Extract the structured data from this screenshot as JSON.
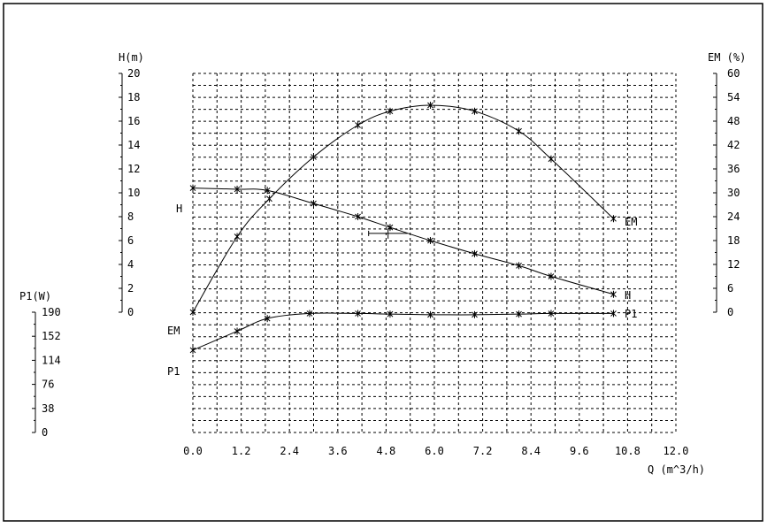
{
  "chart_data": {
    "type": "line",
    "xlabel": "Q (m^3/h)",
    "xlim": [
      0,
      12
    ],
    "xticks": [
      "0.0",
      "1.2",
      "2.4",
      "3.6",
      "4.8",
      "6.0",
      "7.2",
      "8.4",
      "9.6",
      "10.8",
      "12.0"
    ],
    "axes": {
      "H": {
        "label": "H(m)",
        "lim": [
          0,
          20
        ],
        "ticks": [
          "0",
          "2",
          "4",
          "6",
          "8",
          "10",
          "12",
          "14",
          "16",
          "18",
          "20"
        ]
      },
      "EM": {
        "label": "EM (%)",
        "lim": [
          0,
          60
        ],
        "ticks": [
          "0",
          "6",
          "12",
          "18",
          "24",
          "30",
          "36",
          "42",
          "48",
          "54",
          "60"
        ]
      },
      "P1": {
        "label": "P1(W)",
        "lim": [
          0,
          190
        ],
        "ticks": [
          "0",
          "38",
          "76",
          "114",
          "152",
          "190"
        ]
      }
    },
    "series": [
      {
        "name": "H",
        "axis": "H",
        "x": [
          0.0,
          1.1,
          1.85,
          3.0,
          4.1,
          4.9,
          5.9,
          7.0,
          8.1,
          8.9,
          10.45
        ],
        "y": [
          10.4,
          10.3,
          10.2,
          9.1,
          8.0,
          7.1,
          6.0,
          4.9,
          3.9,
          3.0,
          1.5
        ]
      },
      {
        "name": "EM",
        "axis": "EM",
        "x": [
          0.0,
          1.1,
          1.9,
          3.0,
          4.1,
          4.9,
          5.9,
          7.0,
          8.1,
          8.9,
          10.45
        ],
        "y": [
          0.0,
          19.0,
          28.5,
          39.0,
          47.0,
          50.5,
          52.0,
          50.5,
          45.5,
          38.5,
          23.5
        ]
      },
      {
        "name": "P1",
        "axis": "P1",
        "x": [
          0.0,
          1.1,
          1.85,
          2.9,
          4.1,
          4.9,
          5.9,
          7.0,
          8.1,
          8.9,
          10.45
        ],
        "y": [
          130,
          160,
          180,
          188,
          188,
          187,
          186,
          186,
          187,
          188,
          188
        ]
      }
    ],
    "annotations": [
      "H",
      "EM",
      "P1",
      "EM",
      "H",
      "P1"
    ],
    "grid": true
  }
}
